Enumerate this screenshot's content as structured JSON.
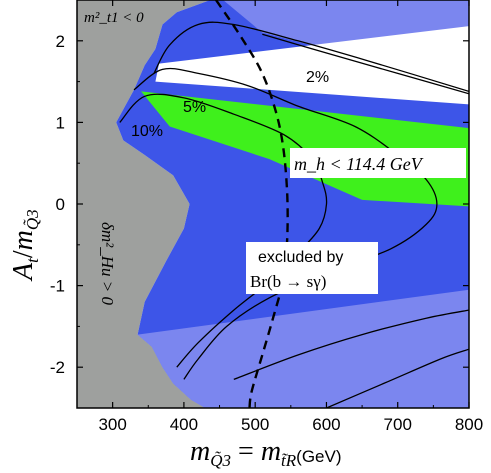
{
  "chart_data": {
    "type": "contour",
    "xlabel": "m_Q3 = m_tR (GeV)",
    "ylabel": "A_t / m_Q3",
    "xlim": [
      250,
      800
    ],
    "ylim": [
      -2.5,
      2.5
    ],
    "xticks": [
      300,
      400,
      500,
      600,
      700,
      800
    ],
    "yticks": [
      -2,
      -1,
      0,
      1,
      2
    ],
    "colors": {
      "tachyonic": "#9ea09e",
      "bsgamma": "#3d55e8",
      "bsgamma_light": "#7b86ef",
      "higgs": "#3ff01c",
      "allowed": "#ffffff"
    },
    "regions": [
      {
        "label_key": "tachyonic",
        "points": [
          [
            250,
            2.5
          ],
          [
            437,
            2.5
          ],
          [
            390,
            2.35
          ],
          [
            370,
            2.2
          ],
          [
            360,
            1.9
          ],
          [
            345,
            1.7
          ],
          [
            330,
            1.4
          ],
          [
            305,
            1.0
          ],
          [
            315,
            0.78
          ],
          [
            345,
            0.6
          ],
          [
            385,
            0.35
          ],
          [
            408,
            0.0
          ],
          [
            400,
            -0.3
          ],
          [
            375,
            -0.7
          ],
          [
            345,
            -1.2
          ],
          [
            335,
            -1.6
          ],
          [
            355,
            -1.75
          ],
          [
            370,
            -2.0
          ],
          [
            385,
            -2.2
          ],
          [
            410,
            -2.4
          ],
          [
            430,
            -2.5
          ],
          [
            250,
            -2.5
          ]
        ]
      },
      {
        "label_key": "bsgamma",
        "points": [
          [
            437,
            2.5
          ],
          [
            800,
            2.5
          ],
          [
            800,
            -2.5
          ],
          [
            430,
            -2.5
          ],
          [
            410,
            -2.4
          ],
          [
            385,
            -2.2
          ],
          [
            370,
            -2.0
          ],
          [
            355,
            -1.75
          ],
          [
            335,
            -1.6
          ],
          [
            345,
            -1.2
          ],
          [
            375,
            -0.7
          ],
          [
            400,
            -0.3
          ],
          [
            408,
            0.0
          ],
          [
            385,
            0.35
          ],
          [
            345,
            0.6
          ],
          [
            315,
            0.78
          ],
          [
            305,
            1.0
          ],
          [
            330,
            1.4
          ],
          [
            345,
            1.7
          ],
          [
            360,
            1.9
          ],
          [
            370,
            2.2
          ],
          [
            390,
            2.35
          ]
        ]
      },
      {
        "label_key": "bsgamma_light",
        "points": [
          [
            335,
            -1.6
          ],
          [
            800,
            -1.05
          ],
          [
            800,
            -2.5
          ],
          [
            430,
            -2.5
          ],
          [
            410,
            -2.4
          ],
          [
            385,
            -2.2
          ],
          [
            370,
            -2.0
          ],
          [
            355,
            -1.75
          ]
        ]
      },
      {
        "label_key": "bsgamma_light",
        "points": [
          [
            455,
            2.5
          ],
          [
            800,
            2.5
          ],
          [
            800,
            1.45
          ],
          [
            510,
            2.1
          ]
        ]
      },
      {
        "label_key": "higgs",
        "points": [
          [
            340,
            1.38
          ],
          [
            800,
            0.93
          ],
          [
            800,
            -0.03
          ],
          [
            650,
            0.05
          ],
          [
            520,
            0.55
          ],
          [
            380,
            0.95
          ]
        ]
      },
      {
        "label_key": "allowed",
        "points": [
          [
            365,
            1.72
          ],
          [
            800,
            2.18
          ],
          [
            800,
            1.22
          ],
          [
            360,
            1.5
          ]
        ]
      }
    ],
    "contours": [
      {
        "label": "2%",
        "points": [
          [
            358,
            1.6
          ],
          [
            380,
            1.95
          ],
          [
            420,
            2.2
          ],
          [
            470,
            2.2
          ],
          [
            560,
            2.0
          ],
          [
            660,
            1.75
          ],
          [
            800,
            1.38
          ]
        ]
      },
      {
        "label": "5%",
        "points": [
          [
            330,
            1.4
          ],
          [
            370,
            1.65
          ],
          [
            420,
            1.6
          ],
          [
            490,
            1.45
          ],
          [
            560,
            1.2
          ],
          [
            640,
            0.95
          ],
          [
            700,
            0.6
          ],
          [
            740,
            0.3
          ],
          [
            755,
            0.0
          ],
          [
            740,
            -0.25
          ],
          [
            690,
            -0.55
          ],
          [
            600,
            -0.85
          ],
          [
            520,
            -1.15
          ],
          [
            460,
            -1.5
          ],
          [
            420,
            -1.9
          ],
          [
            400,
            -2.15
          ]
        ]
      },
      {
        "label": "10%",
        "points": [
          [
            310,
            1.0
          ],
          [
            345,
            1.32
          ],
          [
            400,
            1.3
          ],
          [
            470,
            1.1
          ],
          [
            540,
            0.85
          ],
          [
            580,
            0.55
          ],
          [
            595,
            0.25
          ],
          [
            600,
            0.0
          ],
          [
            590,
            -0.3
          ],
          [
            560,
            -0.6
          ],
          [
            520,
            -0.95
          ],
          [
            470,
            -1.3
          ],
          [
            420,
            -1.7
          ],
          [
            390,
            -2.0
          ]
        ]
      },
      {
        "label": "",
        "points": [
          [
            510,
            2.08
          ],
          [
            600,
            1.85
          ],
          [
            700,
            1.6
          ],
          [
            800,
            1.35
          ]
        ]
      },
      {
        "label": "",
        "points": [
          [
            470,
            -2.15
          ],
          [
            560,
            -1.85
          ],
          [
            650,
            -1.6
          ],
          [
            740,
            -1.4
          ],
          [
            800,
            -1.3
          ]
        ]
      },
      {
        "label": "",
        "points": [
          [
            600,
            -2.5
          ],
          [
            680,
            -2.2
          ],
          [
            760,
            -1.9
          ],
          [
            800,
            -1.78
          ]
        ]
      }
    ],
    "mh_bound": {
      "label": "m_h < 114.4 GeV",
      "points": [
        [
          445,
          2.5
        ],
        [
          480,
          2.05
        ],
        [
          510,
          1.6
        ],
        [
          530,
          1.1
        ],
        [
          540,
          0.65
        ],
        [
          545,
          0.1
        ],
        [
          545,
          -0.4
        ],
        [
          540,
          -0.9
        ],
        [
          525,
          -1.4
        ],
        [
          510,
          -1.85
        ],
        [
          495,
          -2.3
        ],
        [
          492,
          -2.5
        ]
      ]
    },
    "annotations": {
      "tachyonic_top": "m²_t1 < 0",
      "tachyonic_left": "δm²_Hu > 0",
      "higgs": "m_h < 114.4 GeV",
      "bsgamma_line1": "excluded by",
      "bsgamma_line2": "Br(b → sγ)",
      "c2": "2%",
      "c5": "5%",
      "c10": "10%"
    }
  }
}
